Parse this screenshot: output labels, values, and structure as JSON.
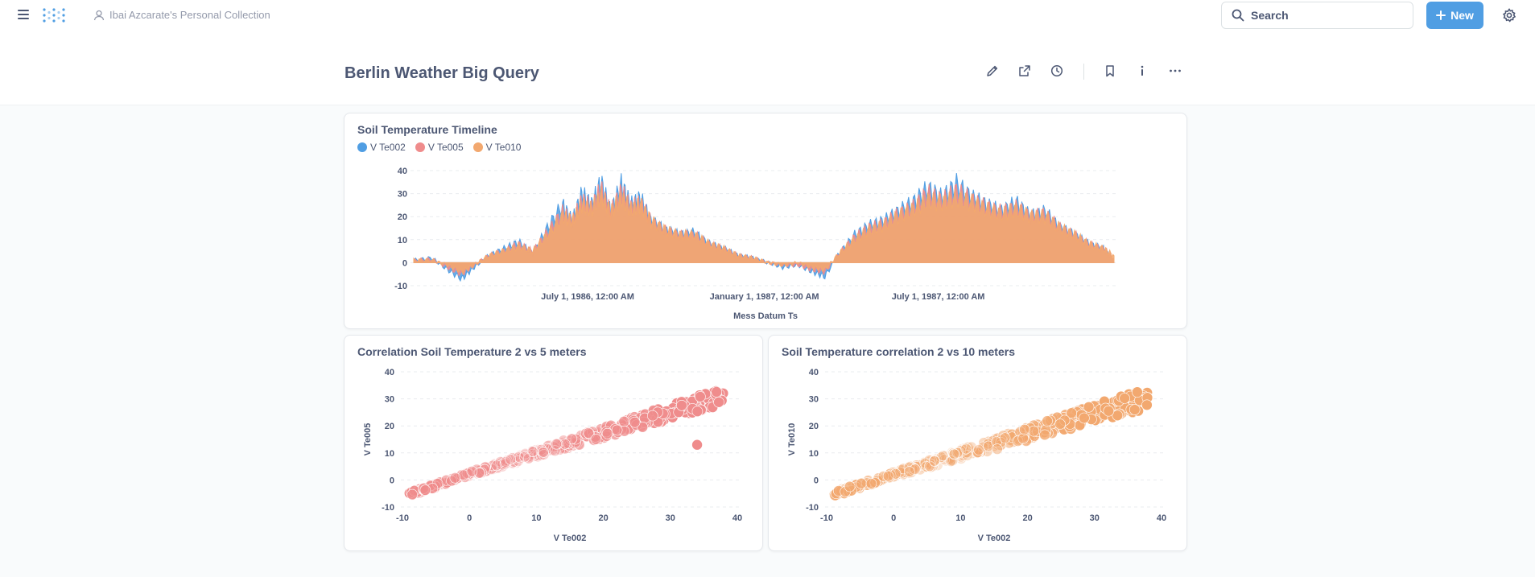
{
  "nav": {
    "collection": "Ibai Azcarate's Personal Collection",
    "search_placeholder": "Search",
    "new_label": "New"
  },
  "dashboard": {
    "title": "Berlin Weather Big Query"
  },
  "colors": {
    "blue": "#509ee3",
    "pink": "#ef8c8c",
    "orange": "#f2a86f",
    "brand": "#509ee3"
  },
  "chart_data": [
    {
      "type": "area",
      "title": "Soil Temperature Timeline",
      "xlabel": "Mess Datum Ts",
      "ylabel": "",
      "x_ticks": [
        "July 1, 1986, 12:00 AM",
        "January 1, 1987, 12:00 AM",
        "July 1, 1987, 12:00 AM"
      ],
      "xlim": [
        "1986-01-01",
        "1987-12-31"
      ],
      "ylim": [
        -10,
        40
      ],
      "y_ticks": [
        -10,
        0,
        10,
        20,
        30,
        40
      ],
      "grid": true,
      "legend": "top-left",
      "series": [
        {
          "name": "V Te002",
          "color": "#509ee3",
          "points": [
            [
              "1986-01-01",
              1
            ],
            [
              "1986-01-20",
              2
            ],
            [
              "1986-02-05",
              -3
            ],
            [
              "1986-02-20",
              -7
            ],
            [
              "1986-03-05",
              -2
            ],
            [
              "1986-03-20",
              3
            ],
            [
              "1986-04-05",
              6
            ],
            [
              "1986-04-20",
              9
            ],
            [
              "1986-05-05",
              4
            ],
            [
              "1986-05-20",
              15
            ],
            [
              "1986-06-05",
              25
            ],
            [
              "1986-06-15",
              18
            ],
            [
              "1986-06-25",
              30
            ],
            [
              "1986-07-05",
              25
            ],
            [
              "1986-07-15",
              35
            ],
            [
              "1986-07-25",
              22
            ],
            [
              "1986-08-05",
              34
            ],
            [
              "1986-08-15",
              25
            ],
            [
              "1986-08-25",
              28
            ],
            [
              "1986-09-05",
              18
            ],
            [
              "1986-09-20",
              14
            ],
            [
              "1986-10-05",
              12
            ],
            [
              "1986-10-20",
              13
            ],
            [
              "1986-11-05",
              8
            ],
            [
              "1986-11-20",
              6
            ],
            [
              "1986-12-05",
              3
            ],
            [
              "1986-12-20",
              2
            ],
            [
              "1987-01-05",
              0
            ],
            [
              "1987-01-20",
              -2
            ],
            [
              "1987-02-05",
              -1
            ],
            [
              "1987-02-20",
              -4
            ],
            [
              "1987-03-05",
              -6
            ],
            [
              "1987-03-20",
              4
            ],
            [
              "1987-04-05",
              12
            ],
            [
              "1987-04-20",
              16
            ],
            [
              "1987-05-05",
              18
            ],
            [
              "1987-05-20",
              22
            ],
            [
              "1987-06-05",
              26
            ],
            [
              "1987-06-20",
              32
            ],
            [
              "1987-07-05",
              28
            ],
            [
              "1987-07-20",
              34
            ],
            [
              "1987-08-05",
              28
            ],
            [
              "1987-08-20",
              25
            ],
            [
              "1987-09-05",
              22
            ],
            [
              "1987-09-20",
              26
            ],
            [
              "1987-10-05",
              20
            ],
            [
              "1987-10-20",
              22
            ],
            [
              "1987-11-05",
              15
            ],
            [
              "1987-11-20",
              12
            ],
            [
              "1987-12-05",
              8
            ],
            [
              "1987-12-20",
              6
            ],
            [
              "1987-12-31",
              1
            ]
          ]
        },
        {
          "name": "V Te005",
          "color": "#ef8c8c",
          "points": [
            [
              "1986-01-01",
              1
            ],
            [
              "1986-01-20",
              1.5
            ],
            [
              "1986-02-05",
              -2
            ],
            [
              "1986-02-20",
              -5
            ],
            [
              "1986-03-05",
              -1
            ],
            [
              "1986-03-20",
              3
            ],
            [
              "1986-04-05",
              5
            ],
            [
              "1986-04-20",
              8
            ],
            [
              "1986-05-05",
              5
            ],
            [
              "1986-05-20",
              13
            ],
            [
              "1986-06-05",
              22
            ],
            [
              "1986-06-15",
              18
            ],
            [
              "1986-06-25",
              27
            ],
            [
              "1986-07-05",
              24
            ],
            [
              "1986-07-15",
              32
            ],
            [
              "1986-07-25",
              22
            ],
            [
              "1986-08-05",
              31
            ],
            [
              "1986-08-15",
              24
            ],
            [
              "1986-08-25",
              26
            ],
            [
              "1986-09-05",
              18
            ],
            [
              "1986-09-20",
              14
            ],
            [
              "1986-10-05",
              12
            ],
            [
              "1986-10-20",
              12
            ],
            [
              "1986-11-05",
              8
            ],
            [
              "1986-11-20",
              6
            ],
            [
              "1986-12-05",
              3
            ],
            [
              "1986-12-20",
              2
            ],
            [
              "1987-01-05",
              0
            ],
            [
              "1987-01-20",
              -1
            ],
            [
              "1987-02-05",
              -1
            ],
            [
              "1987-02-20",
              -3
            ],
            [
              "1987-03-05",
              -4
            ],
            [
              "1987-03-20",
              4
            ],
            [
              "1987-04-05",
              11
            ],
            [
              "1987-04-20",
              15
            ],
            [
              "1987-05-05",
              17
            ],
            [
              "1987-05-20",
              21
            ],
            [
              "1987-06-05",
              24
            ],
            [
              "1987-06-20",
              30
            ],
            [
              "1987-07-05",
              27
            ],
            [
              "1987-07-20",
              31
            ],
            [
              "1987-08-05",
              27
            ],
            [
              "1987-08-20",
              24
            ],
            [
              "1987-09-05",
              22
            ],
            [
              "1987-09-20",
              24
            ],
            [
              "1987-10-05",
              20
            ],
            [
              "1987-10-20",
              21
            ],
            [
              "1987-11-05",
              15
            ],
            [
              "1987-11-20",
              12
            ],
            [
              "1987-12-05",
              8
            ],
            [
              "1987-12-20",
              6
            ],
            [
              "1987-12-31",
              2
            ]
          ]
        },
        {
          "name": "V Te010",
          "color": "#f2a86f",
          "points": [
            [
              "1986-01-01",
              1
            ],
            [
              "1986-01-20",
              1
            ],
            [
              "1986-02-05",
              -1
            ],
            [
              "1986-02-20",
              -4
            ],
            [
              "1986-03-05",
              -1
            ],
            [
              "1986-03-20",
              3
            ],
            [
              "1986-04-05",
              5
            ],
            [
              "1986-04-20",
              7
            ],
            [
              "1986-05-05",
              5
            ],
            [
              "1986-05-20",
              12
            ],
            [
              "1986-06-05",
              20
            ],
            [
              "1986-06-15",
              18
            ],
            [
              "1986-06-25",
              25
            ],
            [
              "1986-07-05",
              23
            ],
            [
              "1986-07-15",
              29
            ],
            [
              "1986-07-25",
              22
            ],
            [
              "1986-08-05",
              28
            ],
            [
              "1986-08-15",
              23
            ],
            [
              "1986-08-25",
              25
            ],
            [
              "1986-09-05",
              18
            ],
            [
              "1986-09-20",
              14
            ],
            [
              "1986-10-05",
              12
            ],
            [
              "1986-10-20",
              12
            ],
            [
              "1986-11-05",
              8
            ],
            [
              "1986-11-20",
              6
            ],
            [
              "1986-12-05",
              3
            ],
            [
              "1986-12-20",
              2
            ],
            [
              "1987-01-05",
              0
            ],
            [
              "1987-01-20",
              -1
            ],
            [
              "1987-02-05",
              0
            ],
            [
              "1987-02-20",
              -2
            ],
            [
              "1987-03-05",
              -3
            ],
            [
              "1987-03-20",
              4
            ],
            [
              "1987-04-05",
              10
            ],
            [
              "1987-04-20",
              14
            ],
            [
              "1987-05-05",
              16
            ],
            [
              "1987-05-20",
              20
            ],
            [
              "1987-06-05",
              23
            ],
            [
              "1987-06-20",
              27
            ],
            [
              "1987-07-05",
              26
            ],
            [
              "1987-07-20",
              28
            ],
            [
              "1987-08-05",
              26
            ],
            [
              "1987-08-20",
              23
            ],
            [
              "1987-09-05",
              21
            ],
            [
              "1987-09-20",
              23
            ],
            [
              "1987-10-05",
              20
            ],
            [
              "1987-10-20",
              20
            ],
            [
              "1987-11-05",
              15
            ],
            [
              "1987-11-20",
              12
            ],
            [
              "1987-12-05",
              8
            ],
            [
              "1987-12-20",
              6
            ],
            [
              "1987-12-31",
              3
            ]
          ]
        }
      ]
    },
    {
      "type": "scatter",
      "title": "Correlation Soil Temperature 2 vs 5 meters",
      "xlabel": "V Te002",
      "ylabel": "V Te005",
      "xlim": [
        -10,
        40
      ],
      "ylim": [
        -10,
        40
      ],
      "x_ticks": [
        -10,
        0,
        10,
        20,
        30,
        40
      ],
      "y_ticks": [
        -10,
        0,
        10,
        20,
        30,
        40
      ],
      "grid": true,
      "color": "#ef8c8c",
      "trend": {
        "slope": 0.83,
        "intercept": 1.5,
        "spread": 4
      },
      "outliers": [
        [
          34,
          13
        ]
      ]
    },
    {
      "type": "scatter",
      "title": "Soil Temperature correlation 2 vs 10 meters",
      "xlabel": "V Te002",
      "ylabel": "V Te010",
      "xlim": [
        -10,
        40
      ],
      "ylim": [
        -10,
        40
      ],
      "x_ticks": [
        -10,
        0,
        10,
        20,
        30,
        40
      ],
      "y_ticks": [
        -10,
        0,
        10,
        20,
        30,
        40
      ],
      "grid": true,
      "color": "#f2a86f",
      "trend": {
        "slope": 0.83,
        "intercept": 1.5,
        "spread": 5
      },
      "outliers": [
        [
          36,
          26
        ]
      ]
    }
  ]
}
